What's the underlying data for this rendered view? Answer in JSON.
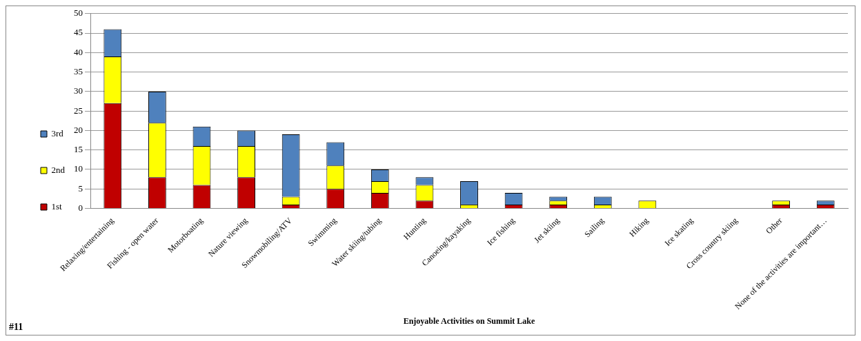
{
  "chart_data": {
    "type": "bar",
    "stacked": true,
    "xlabel": "Enjoyable Activities on Summit Lake",
    "categories": [
      "Relaxing/entertaining",
      "Fishing - open water",
      "Motorboating",
      "Nature viewing",
      "Snowmobiling/ATV",
      "Swimming",
      "Water skiing/tubing",
      "Hunting",
      "Canoeing/kayaking",
      "Ice fishing",
      "Jet skiing",
      "Sailing",
      "Hiking",
      "Ice skating",
      "Cross country skiing",
      "Other",
      "None of the activities are important…"
    ],
    "series": [
      {
        "name": "1st",
        "color": "#c00000",
        "values": [
          27,
          8,
          6,
          8,
          1,
          5,
          4,
          2,
          0,
          1,
          1,
          0,
          0,
          0,
          0,
          1,
          1
        ]
      },
      {
        "name": "2nd",
        "color": "#ffff00",
        "values": [
          12,
          14,
          10,
          8,
          2,
          6,
          3,
          4,
          1,
          0,
          1,
          1,
          2,
          0,
          0,
          1,
          0
        ]
      },
      {
        "name": "3rd",
        "color": "#4f81bd",
        "values": [
          7,
          8,
          5,
          4,
          16,
          6,
          3,
          2,
          6,
          3,
          1,
          2,
          0,
          0,
          0,
          0,
          1
        ]
      }
    ],
    "ylim": [
      0,
      50
    ],
    "yticks": [
      0,
      5,
      10,
      15,
      20,
      25,
      30,
      35,
      40,
      45,
      50
    ],
    "grid": "y",
    "legend": "left",
    "annotations": [
      "#11"
    ]
  }
}
